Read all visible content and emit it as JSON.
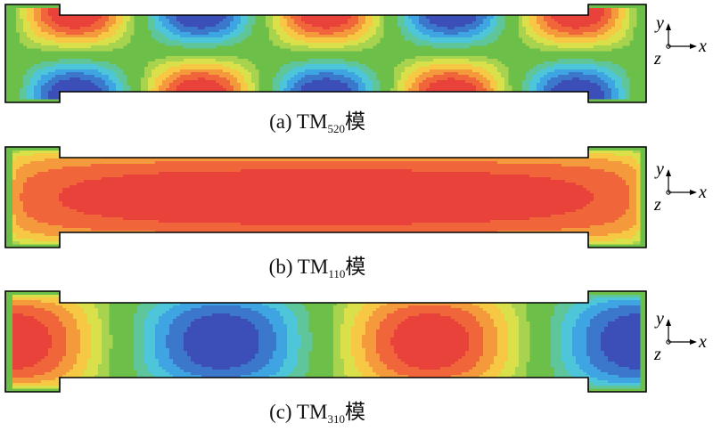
{
  "panels": [
    {
      "id": "a",
      "caption_prefix": "(a) TM",
      "caption_sub": "520",
      "caption_suffix": "模",
      "mode": {
        "m": 5,
        "n": 2,
        "p": 0
      }
    },
    {
      "id": "b",
      "caption_prefix": "(b) TM",
      "caption_sub": "110",
      "caption_suffix": "模",
      "mode": {
        "m": 1,
        "n": 1,
        "p": 0
      }
    },
    {
      "id": "c",
      "caption_prefix": "(c) TM",
      "caption_sub": "310",
      "caption_suffix": "模",
      "mode": {
        "m": 3,
        "n": 1,
        "p": 0
      }
    }
  ],
  "axes": {
    "y": "y",
    "z": "z",
    "x": "x"
  },
  "colors": {
    "background_field": "#6cc04a",
    "positive_max": "#e8423a",
    "negative_max": "#3c4fb8",
    "outline": "#000000"
  }
}
